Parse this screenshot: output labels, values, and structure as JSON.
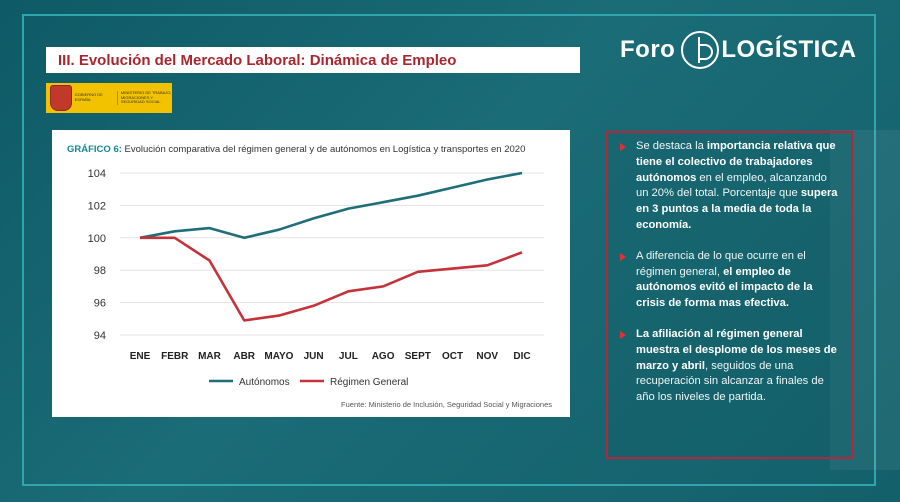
{
  "header": {
    "title": "III. Evolución del Mercado Laboral: Dinámica de Empleo",
    "logo_left": "Foro",
    "logo_right": "LOGÍSTICA",
    "gov_line1": "GOBIERNO DE ESPAÑA",
    "gov_line2": "MINISTERIO DE TRABAJO, MIGRACIONES Y SEGURIDAD SOCIAL"
  },
  "chart_data": {
    "type": "line",
    "title_prefix": "GRÁFICO 6:",
    "title": "Evolución comparativa del régimen general y de autónomos en Logística y transportes en 2020",
    "categories": [
      "ENE",
      "FEBR",
      "MAR",
      "ABR",
      "MAYO",
      "JUN",
      "JUL",
      "AGO",
      "SEPT",
      "OCT",
      "NOV",
      "DIC"
    ],
    "ylim": [
      94,
      104
    ],
    "yticks": [
      "104",
      "102",
      "100",
      "98",
      "96",
      "94"
    ],
    "grid": true,
    "legend_position": "bottom-left",
    "series": [
      {
        "name": "Autónomos",
        "color": "#1f6e78",
        "values": [
          100,
          100.4,
          100.6,
          100,
          100.5,
          101.2,
          101.8,
          102.2,
          102.6,
          103.1,
          103.6,
          104
        ]
      },
      {
        "name": "Régimen General",
        "color": "#c4323a",
        "values": [
          100,
          100,
          98.6,
          94.9,
          95.2,
          95.8,
          96.7,
          97,
          97.9,
          98.1,
          98.3,
          99.1
        ]
      }
    ],
    "source": "Fuente: Ministerio de Inclusión, Seguridad Social y Migraciones"
  },
  "notes": {
    "b1": {
      "p1": "Se destaca la ",
      "b1": "importancia relativa que tiene el colectivo de trabajadores autónomos",
      "p2": " en el empleo, alcanzando un 20% del total. Porcentaje que ",
      "b2": "supera en 3 puntos a la media de toda la economía."
    },
    "b2": {
      "p1": "A diferencia de lo que ocurre en el régimen general, ",
      "b1": "el empleo de autónomos evitó el impacto de la crisis de forma mas efectiva."
    },
    "b3": {
      "b1": "La afiliación al régimen general muestra el desplome de los meses de marzo y abril",
      "p1": ", seguidos de una recuperación sin alcanzar a finales de año los niveles de partida."
    }
  }
}
